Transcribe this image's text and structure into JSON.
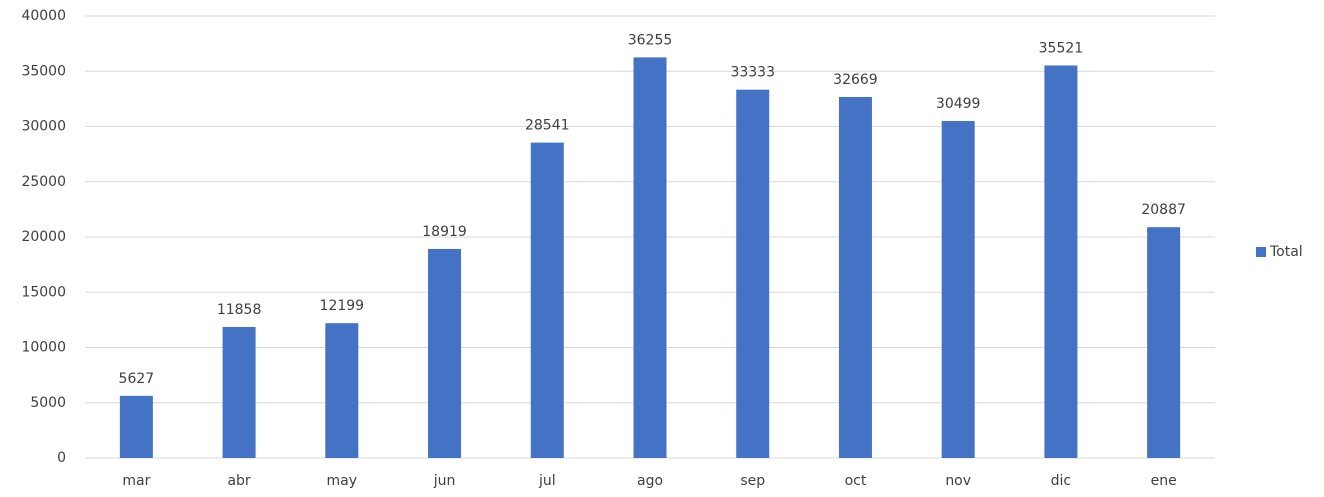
{
  "chart_data": {
    "type": "bar",
    "categories": [
      "mar",
      "abr",
      "may",
      "jun",
      "jul",
      "ago",
      "sep",
      "oct",
      "nov",
      "dic",
      "ene"
    ],
    "series": [
      {
        "name": "Total",
        "color": "#4472c4",
        "values": [
          5627,
          11858,
          12199,
          18919,
          28541,
          36255,
          33333,
          32669,
          30499,
          35521,
          20887
        ]
      }
    ],
    "ylim": [
      0,
      40000
    ],
    "yticks": [
      0,
      5000,
      10000,
      15000,
      20000,
      25000,
      30000,
      35000,
      40000
    ],
    "grid": true,
    "legend": "right",
    "data_labels": true
  }
}
